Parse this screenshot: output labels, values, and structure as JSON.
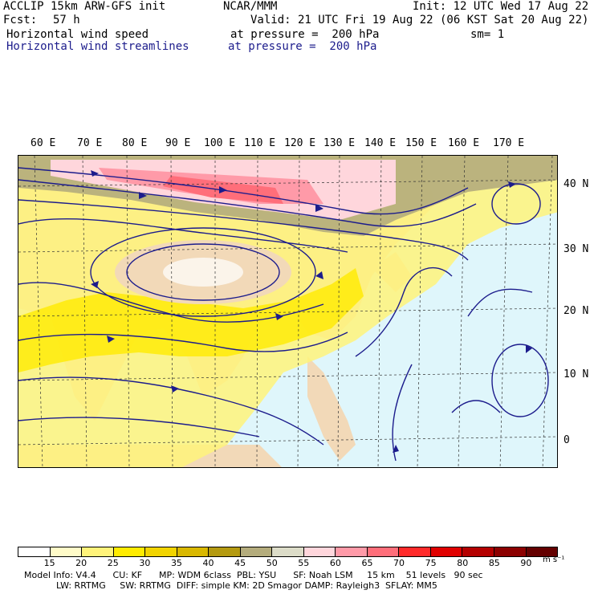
{
  "header": {
    "model": "ACCLIP 15km ARW-GFS init",
    "org": "NCAR/MMM",
    "init": "Init: 12 UTC Wed 17 Aug 22",
    "fcst_label": "Fcst:",
    "fcst_value": "57 h",
    "valid": "Valid: 21 UTC Fri 19 Aug 22 (06 KST Sat 20 Aug 22)",
    "field1": "Horizontal wind speed",
    "field1_level": "at pressure =  200 hPa",
    "smoothing": "sm= 1",
    "field2": "Horizontal wind streamlines",
    "field2_level": "at pressure =  200 hPa"
  },
  "map": {
    "lon_labels": [
      "60 E",
      "70 E",
      "80 E",
      "90 E",
      "100 E",
      "110 E",
      "120 E",
      "130 E",
      "140 E",
      "150 E",
      "160 E",
      "170 E"
    ],
    "lat_labels": [
      "40 N",
      "30 N",
      "20 N",
      "10 N",
      "0"
    ],
    "streamline_color": "#1c1c8c",
    "land_color": "#f2d9b8",
    "ocean_color": "#dff6fb"
  },
  "colorbar": {
    "labels": [
      "15",
      "20",
      "25",
      "30",
      "35",
      "40",
      "45",
      "50",
      "55",
      "60",
      "65",
      "70",
      "75",
      "80",
      "85",
      "90"
    ],
    "units": "m s⁻¹",
    "colors": [
      "#ffffff",
      "#fffbc8",
      "#fff37a",
      "#ffeb00",
      "#f2d400",
      "#d9b800",
      "#b49a10",
      "#b4ac7c",
      "#dcdcc8",
      "#ffd6dc",
      "#ff9aa8",
      "#ff6e7a",
      "#ff2a2a",
      "#e00000",
      "#b40000",
      "#8c0000",
      "#640000"
    ]
  },
  "footer": {
    "line1": "Model Info: V4.4      CU: KF      MP: WDM 6class  PBL: YSU      SF: Noah LSM     15 km    51 levels   90 sec",
    "line2": "LW: RRTMG     SW: RRTMG  DIFF: simple KM: 2D Smagor DAMP: Rayleigh3  SFLAY: MM5"
  }
}
